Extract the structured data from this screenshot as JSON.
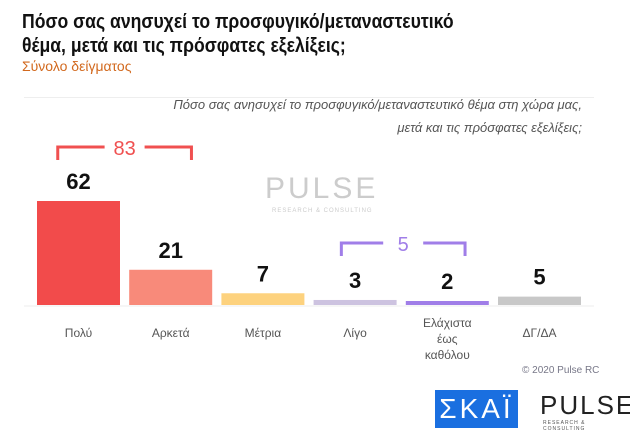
{
  "chart_data": {
    "type": "bar",
    "title": "Πόσο σας ανησυχεί το προσφυγικό/μεταναστευτικό θέμα, μετά και τις πρόσφατες εξελίξεις;",
    "subtitle": "Σύνολο δείγματος",
    "question": [
      "Πόσο σας ανησυχεί το προσφυγικό/μεταναστευτικό θέμα στη χώρα μας,",
      "μετά και τις πρόσφατες εξελίξεις;"
    ],
    "categories": [
      [
        "Πολύ"
      ],
      [
        "Αρκετά"
      ],
      [
        "Μέτρια"
      ],
      [
        "Λίγο"
      ],
      [
        "Ελάχιστα",
        "έως",
        "καθόλου"
      ],
      [
        "ΔΓ/ΔΑ"
      ]
    ],
    "values": [
      62,
      21,
      7,
      3,
      2,
      5
    ],
    "colors": [
      "#f24b4b",
      "#f88a7a",
      "#fdd27e",
      "#cdc3e0",
      "#a07ee8",
      "#c8c8c8"
    ],
    "ylim": [
      0,
      62
    ],
    "annotations": [
      {
        "label": "83",
        "from": 0,
        "to": 1,
        "color": "#f05050"
      },
      {
        "label": "5",
        "from": 3,
        "to": 4,
        "color": "#a07ee8"
      }
    ]
  },
  "watermark": {
    "name": "PULSE",
    "tag": "RESEARCH & CONSULTING"
  },
  "footer": {
    "copyright": "© 2020 Pulse RC",
    "logo_skai": "ΣΚΑΪ",
    "logo_pulse": "PULSE",
    "logo_pulse_tag": "RESEARCH & CONSULTING"
  }
}
